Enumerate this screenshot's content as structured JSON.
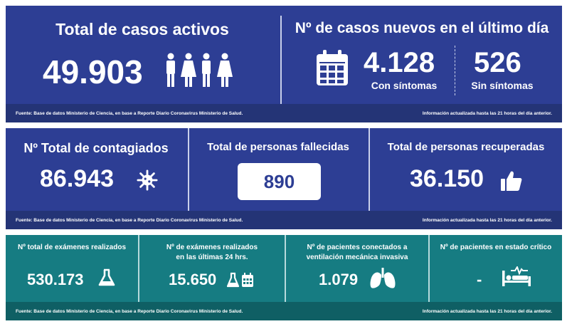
{
  "active": {
    "title": "Total de casos activos",
    "value": "49.903",
    "icon": "people-icon"
  },
  "new_cases": {
    "title": "Nº de casos nuevos en el último día",
    "with_symptoms_value": "4.128",
    "with_symptoms_label": "Con síntomas",
    "without_symptoms_value": "526",
    "without_symptoms_label": "Sin síntomas",
    "icon": "calendar-icon"
  },
  "footer_row1": {
    "source": "Fuente: Base de datos Ministerio de Ciencia, en base a Reporte Diario Coronavirus Ministerio de Salud.",
    "updated": "Información actualizada hasta las 21 horas  del día anterior."
  },
  "infected": {
    "title": "Nº Total de contagiados",
    "value": "86.943",
    "icon": "virus-icon"
  },
  "deaths": {
    "title": "Total de personas fallecidas",
    "value": "890"
  },
  "recovered": {
    "title": "Total de personas recuperadas",
    "value": "36.150",
    "icon": "thumbs-up-icon"
  },
  "footer_row2": {
    "source": "Fuente: Base de datos Ministerio de Ciencia, en base a Reporte Diario Coronavirus Ministerio de Salud.",
    "updated": "Información actualizada hasta las 21 horas  del día anterior."
  },
  "exams_total": {
    "title": "Nº total de exámenes realizados",
    "value": "530.173",
    "icon": "flask-icon"
  },
  "exams_24h": {
    "title_line1": "Nº de exámenes realizados",
    "title_line2": "en las últimas 24 hrs.",
    "value": "15.650",
    "icon": "flask-calendar-icon"
  },
  "ventilation": {
    "title_line1": "Nº de pacientes conectados a",
    "title_line2": "ventilación mecánica invasiva",
    "value": "1.079",
    "icon": "lungs-icon"
  },
  "critical": {
    "title": "Nº de pacientes en estado crítico",
    "value": "-",
    "icon": "hospital-bed-icon"
  },
  "footer_row3": {
    "source": "Fuente: Base de datos Ministerio de Ciencia, en base a Reporte Diario Coronavirus Ministerio de Salud.",
    "updated": "Información actualizada hasta las 21 horas  del día anterior."
  },
  "colors": {
    "blue_panel": "#2d3e94",
    "teal_panel": "#167c82",
    "text": "#ffffff"
  }
}
